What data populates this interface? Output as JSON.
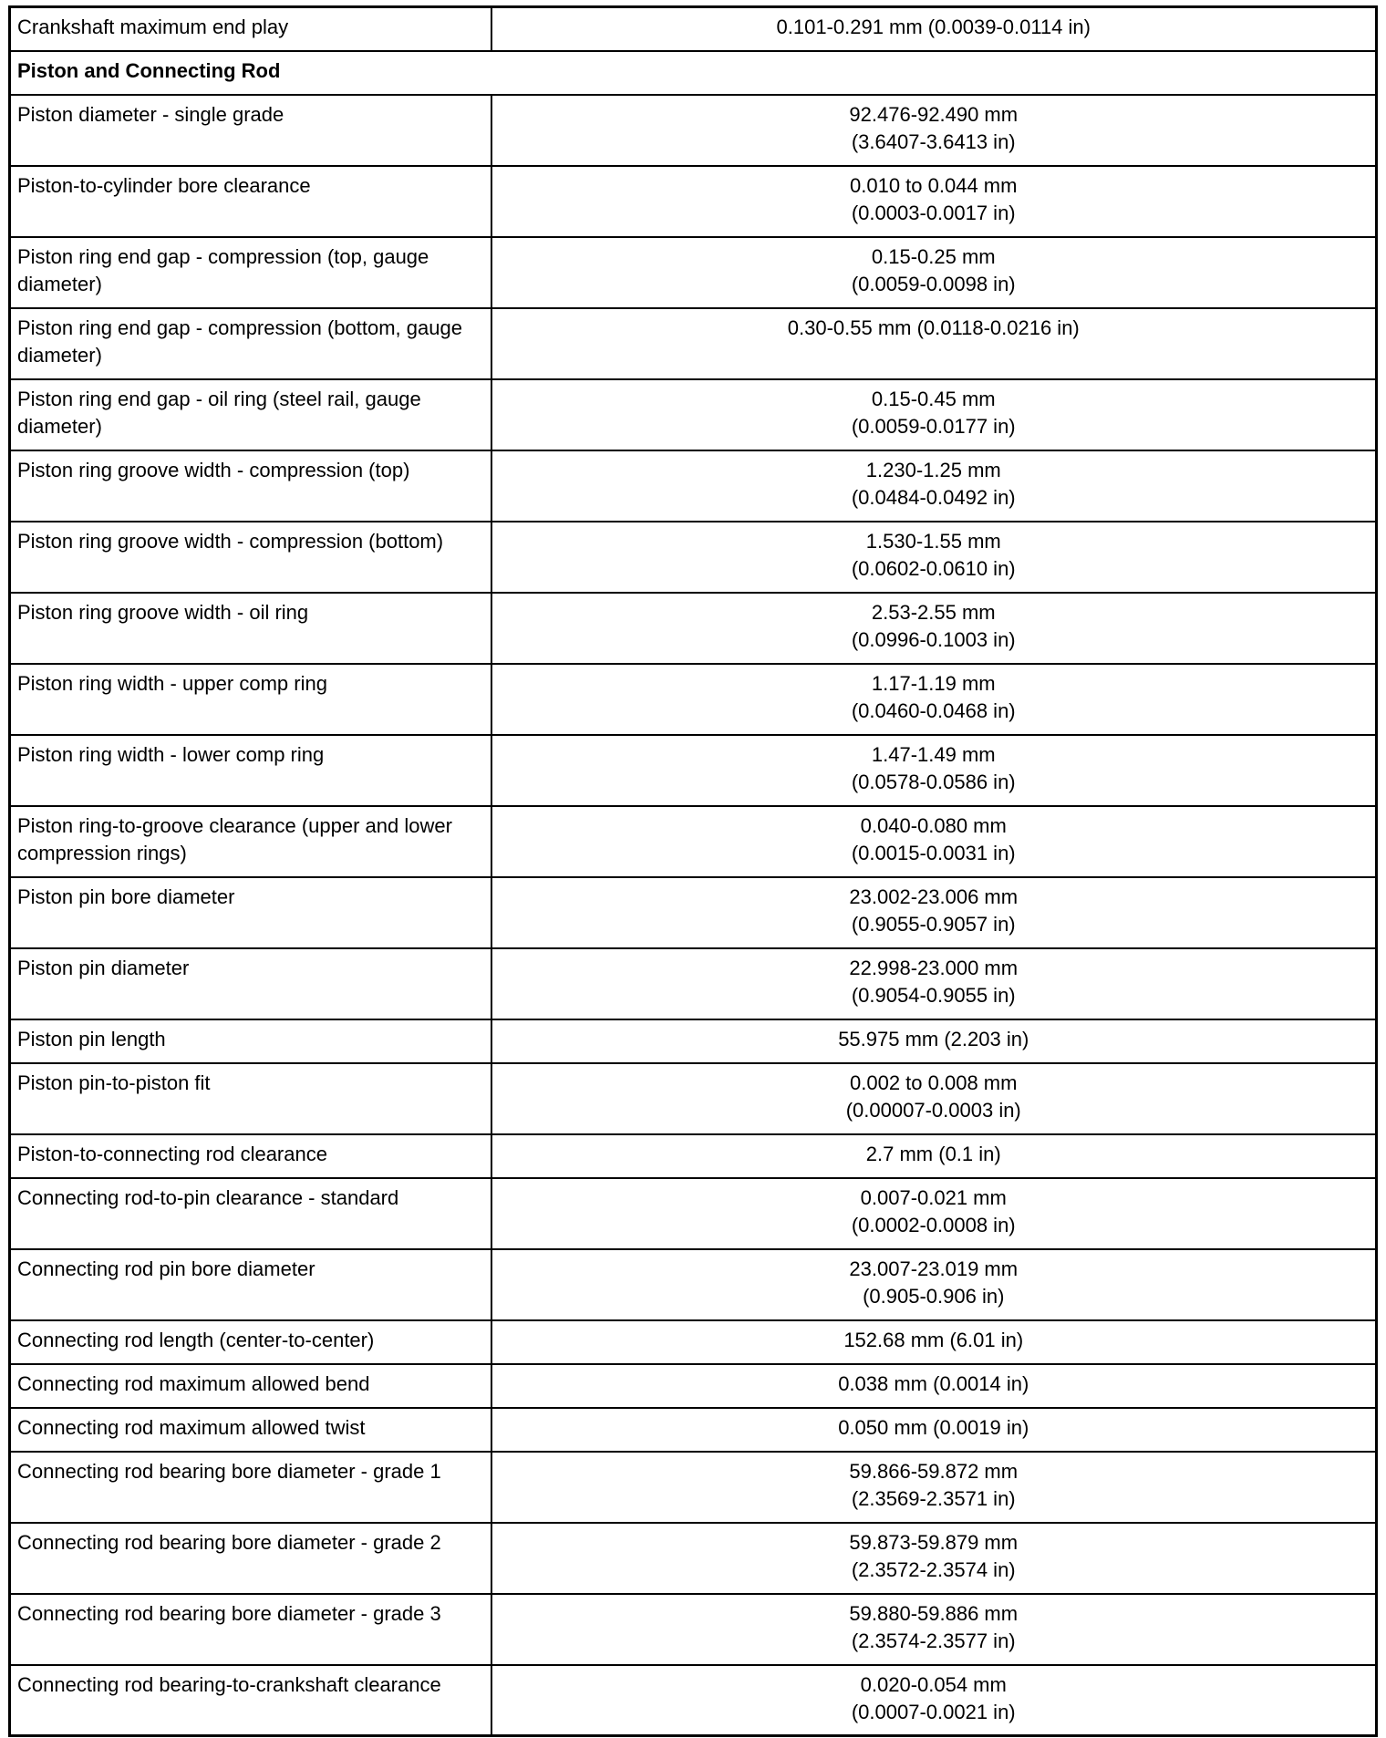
{
  "rows": [
    {
      "type": "row",
      "spec": "Crankshaft maximum end play",
      "value": [
        "0.101-0.291 mm (0.0039-0.0114 in)"
      ]
    },
    {
      "type": "header",
      "spec": "Piston and Connecting Rod"
    },
    {
      "type": "row",
      "spec": "Piston diameter - single grade",
      "value": [
        "92.476-92.490 mm",
        "(3.6407-3.6413 in)"
      ]
    },
    {
      "type": "row",
      "spec": "Piston-to-cylinder bore clearance",
      "value": [
        "0.010 to 0.044 mm",
        "(0.0003-0.0017 in)"
      ]
    },
    {
      "type": "row",
      "spec": "Piston ring end gap - compression (top, gauge diameter)",
      "value": [
        "0.15-0.25 mm",
        "(0.0059-0.0098 in)"
      ]
    },
    {
      "type": "row",
      "spec": "Piston ring end gap - compression (bottom, gauge diameter)",
      "value": [
        "0.30-0.55 mm (0.0118-0.0216 in)"
      ],
      "tall": true
    },
    {
      "type": "row",
      "spec": "Piston ring end gap - oil ring (steel rail, gauge diameter)",
      "value": [
        "0.15-0.45 mm",
        "(0.0059-0.0177 in)"
      ]
    },
    {
      "type": "row",
      "spec": "Piston ring groove width - compression (top)",
      "value": [
        "1.230-1.25 mm",
        "(0.0484-0.0492 in)"
      ]
    },
    {
      "type": "row",
      "spec": "Piston ring groove width - compression (bottom)",
      "value": [
        "1.530-1.55 mm",
        "(0.0602-0.0610 in)"
      ]
    },
    {
      "type": "row",
      "spec": "Piston ring groove width - oil ring",
      "value": [
        "2.53-2.55 mm",
        "(0.0996-0.1003 in)"
      ]
    },
    {
      "type": "row",
      "spec": "Piston ring width - upper comp ring",
      "value": [
        "1.17-1.19 mm",
        "(0.0460-0.0468 in)"
      ]
    },
    {
      "type": "row",
      "spec": "Piston ring width - lower comp ring",
      "value": [
        "1.47-1.49 mm",
        "(0.0578-0.0586 in)"
      ]
    },
    {
      "type": "row",
      "spec": "Piston ring-to-groove clearance (upper and lower compression rings)",
      "value": [
        "0.040-0.080 mm",
        "(0.0015-0.0031 in)"
      ]
    },
    {
      "type": "row",
      "spec": "Piston pin bore diameter",
      "value": [
        "23.002-23.006 mm",
        "(0.9055-0.9057 in)"
      ]
    },
    {
      "type": "row",
      "spec": "Piston pin diameter",
      "value": [
        "22.998-23.000 mm",
        "(0.9054-0.9055 in)"
      ]
    },
    {
      "type": "row",
      "spec": "Piston pin length",
      "value": [
        "55.975 mm (2.203 in)"
      ]
    },
    {
      "type": "row",
      "spec": "Piston pin-to-piston fit",
      "value": [
        "0.002 to 0.008 mm",
        "(0.00007-0.0003 in)"
      ]
    },
    {
      "type": "row",
      "spec": "Piston-to-connecting rod clearance",
      "value": [
        "2.7 mm (0.1 in)"
      ]
    },
    {
      "type": "row",
      "spec": "Connecting rod-to-pin clearance - standard",
      "value": [
        "0.007-0.021 mm",
        "(0.0002-0.0008 in)"
      ]
    },
    {
      "type": "row",
      "spec": "Connecting rod pin bore diameter",
      "value": [
        "23.007-23.019 mm",
        "(0.905-0.906 in)"
      ]
    },
    {
      "type": "row",
      "spec": "Connecting rod length (center-to-center)",
      "value": [
        "152.68 mm (6.01 in)"
      ]
    },
    {
      "type": "row",
      "spec": "Connecting rod maximum allowed bend",
      "value": [
        "0.038 mm (0.0014 in)"
      ]
    },
    {
      "type": "row",
      "spec": "Connecting rod maximum allowed twist",
      "value": [
        "0.050 mm (0.0019 in)"
      ]
    },
    {
      "type": "row",
      "spec": "Connecting rod bearing bore diameter - grade 1",
      "value": [
        "59.866-59.872 mm",
        "(2.3569-2.3571 in)"
      ]
    },
    {
      "type": "row",
      "spec": "Connecting rod bearing bore diameter - grade 2",
      "value": [
        "59.873-59.879 mm",
        "(2.3572-2.3574 in)"
      ]
    },
    {
      "type": "row",
      "spec": "Connecting rod bearing bore diameter - grade 3",
      "value": [
        "59.880-59.886 mm",
        "(2.3574-2.3577 in)"
      ]
    },
    {
      "type": "row",
      "spec": "Connecting rod bearing-to-crankshaft clearance",
      "value": [
        "0.020-0.054 mm",
        "(0.0007-0.0021 in)"
      ]
    }
  ]
}
